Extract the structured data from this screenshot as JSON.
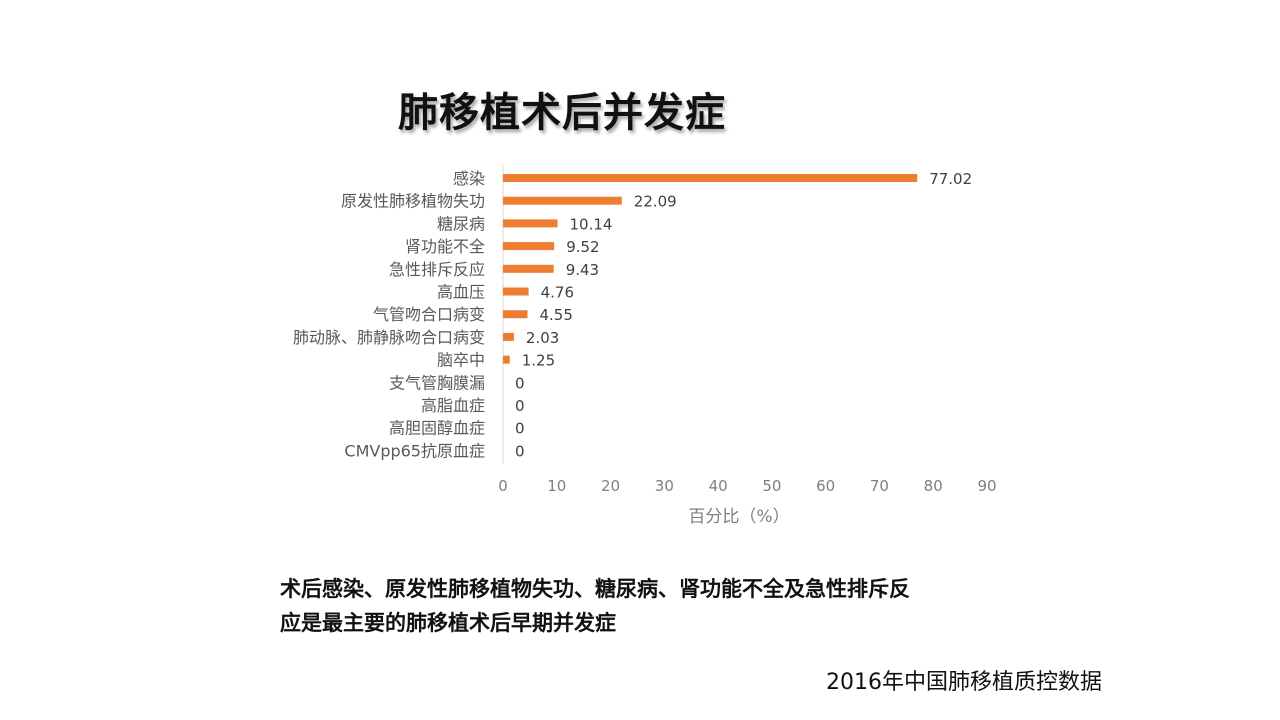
{
  "title": "肺移植术后并发症",
  "chart_data": {
    "type": "bar",
    "orientation": "horizontal",
    "categories": [
      "感染",
      "原发性肺移植物失功",
      "糖尿病",
      "肾功能不全",
      "急性排斥反应",
      "高血压",
      "气管吻合口病变",
      "肺动脉、肺静脉吻合口病变",
      "脑卒中",
      "支气管胸膜漏",
      "高脂血症",
      "高胆固醇血症",
      "CMVpp65抗原血症"
    ],
    "values": [
      77.02,
      22.09,
      10.14,
      9.52,
      9.43,
      4.76,
      4.55,
      2.03,
      1.25,
      0,
      0,
      0,
      0
    ],
    "value_labels": [
      "77.02",
      "22.09",
      "10.14",
      "9.52",
      "9.43",
      "4.76",
      "4.55",
      "2.03",
      "1.25",
      "0",
      "0",
      "0",
      "0"
    ],
    "xlabel": "百分比（%）",
    "xlim": [
      0,
      90
    ],
    "xticks": [
      "0",
      "10",
      "20",
      "30",
      "40",
      "50",
      "60",
      "70",
      "80",
      "90"
    ],
    "grid": false,
    "colors": {
      "bar": "#ED7D31",
      "axis": "#D9D9D9",
      "category_text": "#595959",
      "value_text": "#404040",
      "tick_text": "#7F7F7F"
    }
  },
  "summary": {
    "line1": "术后感染、原发性肺移植物失功、糖尿病、肾功能不全及急性排斥反",
    "line2": "应是最主要的肺移植术后早期并发症"
  },
  "source": "2016年中国肺移植质控数据"
}
